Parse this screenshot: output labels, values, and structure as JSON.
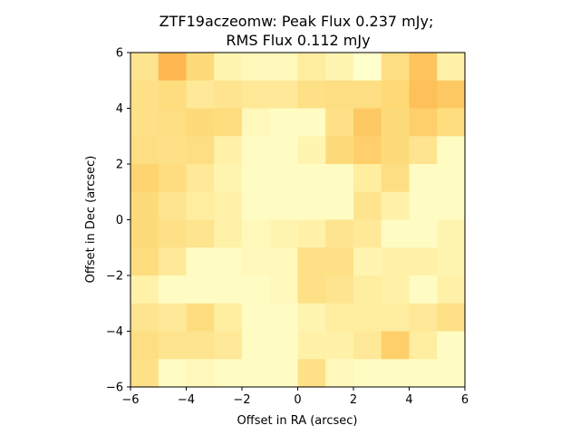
{
  "chart_data": {
    "type": "heatmap",
    "title_line1": "ZTF19aczeomw: Peak Flux 0.237 mJy;",
    "title_line2": "RMS Flux 0.112 mJy",
    "xlabel": "Offset in RA (arcsec)",
    "ylabel": "Offset in Dec (arcsec)",
    "xlim": [
      -6,
      6
    ],
    "ylim": [
      -6,
      6
    ],
    "xticks": [
      -6,
      -4,
      -2,
      0,
      2,
      4,
      6
    ],
    "yticks": [
      -6,
      -4,
      -2,
      0,
      2,
      4,
      6
    ],
    "xtick_labels": [
      "−6",
      "−4",
      "−2",
      "0",
      "2",
      "4",
      "6"
    ],
    "ytick_labels": [
      "−6",
      "−4",
      "−2",
      "0",
      "2",
      "4",
      "6"
    ],
    "colormap": [
      "#ffffcc",
      "#fff1a8",
      "#fee087",
      "#fed976",
      "#fec45d",
      "#fdb24c"
    ],
    "grid_rows_top_to_bottom": [
      [
        0.35,
        0.95,
        0.55,
        0.15,
        0.1,
        0.1,
        0.25,
        0.15,
        0.0,
        0.45,
        0.8,
        0.2
      ],
      [
        0.4,
        0.5,
        0.3,
        0.35,
        0.3,
        0.3,
        0.4,
        0.45,
        0.45,
        0.6,
        0.85,
        0.75
      ],
      [
        0.4,
        0.45,
        0.55,
        0.5,
        0.1,
        0.05,
        0.05,
        0.4,
        0.75,
        0.55,
        0.7,
        0.5
      ],
      [
        0.45,
        0.4,
        0.45,
        0.2,
        0.05,
        0.05,
        0.15,
        0.55,
        0.7,
        0.55,
        0.35,
        0.05
      ],
      [
        0.65,
        0.5,
        0.3,
        0.15,
        0.05,
        0.05,
        0.05,
        0.05,
        0.25,
        0.45,
        0.05,
        0.05
      ],
      [
        0.55,
        0.35,
        0.25,
        0.2,
        0.05,
        0.05,
        0.05,
        0.05,
        0.35,
        0.2,
        0.05,
        0.05
      ],
      [
        0.55,
        0.4,
        0.35,
        0.2,
        0.1,
        0.15,
        0.2,
        0.35,
        0.3,
        0.05,
        0.05,
        0.15
      ],
      [
        0.5,
        0.3,
        0.05,
        0.05,
        0.1,
        0.1,
        0.4,
        0.4,
        0.15,
        0.2,
        0.2,
        0.15
      ],
      [
        0.2,
        0.05,
        0.05,
        0.05,
        0.05,
        0.1,
        0.4,
        0.35,
        0.25,
        0.2,
        0.05,
        0.2
      ],
      [
        0.35,
        0.3,
        0.5,
        0.25,
        0.05,
        0.05,
        0.15,
        0.25,
        0.25,
        0.25,
        0.3,
        0.4
      ],
      [
        0.45,
        0.35,
        0.35,
        0.3,
        0.05,
        0.05,
        0.2,
        0.2,
        0.3,
        0.7,
        0.25,
        0.05
      ],
      [
        0.4,
        0.05,
        0.1,
        0.05,
        0.05,
        0.05,
        0.4,
        0.1,
        0.05,
        0.05,
        0.05,
        0.05
      ]
    ]
  }
}
